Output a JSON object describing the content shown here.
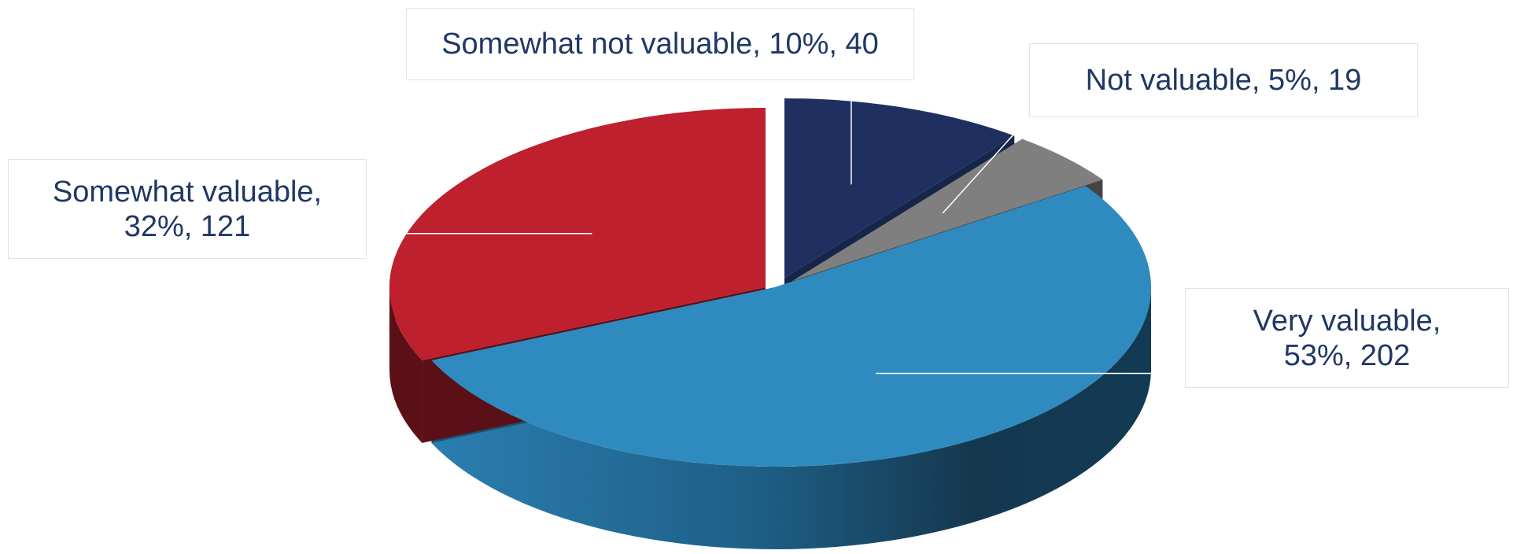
{
  "chart_data": {
    "type": "pie",
    "style": "3d-exploded",
    "title": "",
    "categories": [
      "Very valuable",
      "Somewhat valuable",
      "Somewhat not valuable",
      "Not valuable"
    ],
    "values": [
      202,
      121,
      40,
      19
    ],
    "percentages": [
      53,
      32,
      10,
      5
    ],
    "colors": [
      "#2f8bbf",
      "#be202e",
      "#1f3060",
      "#7f7f7f"
    ],
    "data_labels": [
      "Very valuable, 53%, 202",
      "Somewhat valuable, 32%, 121",
      "Somewhat not valuable, 10%, 40",
      "Not valuable, 5%, 19"
    ],
    "legend": "none"
  }
}
